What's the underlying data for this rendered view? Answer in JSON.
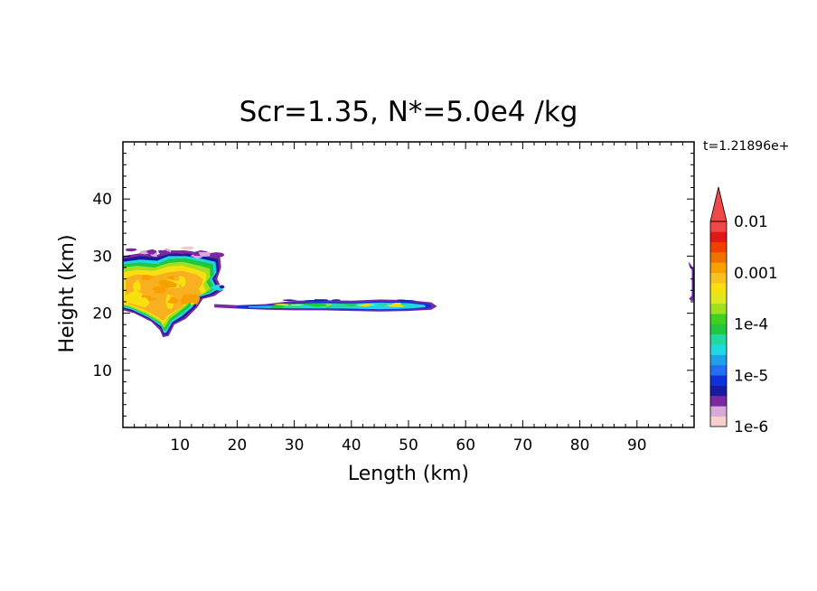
{
  "chart_data": {
    "type": "heatmap",
    "title": "Scr=1.35, N*=5.0e4 /kg",
    "time_label": "t=1.21896e+",
    "xlabel": "Length  (km)",
    "ylabel": "Height  (km)",
    "xlim": [
      0,
      100
    ],
    "ylim": [
      0,
      50
    ],
    "x_ticks": [
      "10",
      "20",
      "30",
      "40",
      "50",
      "60",
      "70",
      "80",
      "90"
    ],
    "y_ticks": [
      "10",
      "20",
      "30",
      "40"
    ],
    "x_tick_values": [
      10,
      20,
      30,
      40,
      50,
      60,
      70,
      80,
      90
    ],
    "y_tick_values": [
      10,
      20,
      30,
      40
    ],
    "colorbar": {
      "labels": [
        "0.01",
        "0.001",
        "1e-4",
        "1e-5",
        "1e-6"
      ],
      "label_values": [
        0.01,
        0.001,
        0.0001,
        1e-05,
        1e-06
      ],
      "colors": [
        "#f7d0cc",
        "#d8a8d8",
        "#7a2aa0",
        "#1a1aa0",
        "#1030d8",
        "#2070f0",
        "#20a0e8",
        "#20d8e0",
        "#20d8a0",
        "#20c840",
        "#40d020",
        "#a0e020",
        "#e0e820",
        "#f8e010",
        "#f8c020",
        "#f8a000",
        "#f07000",
        "#f04000",
        "#e01818",
        "#f04848"
      ],
      "extend": "max"
    },
    "features": [
      {
        "name": "anvil-main",
        "x_range": [
          0,
          17
        ],
        "y_range": [
          16,
          31
        ]
      },
      {
        "name": "thin-layer",
        "x_range": [
          17,
          55
        ],
        "y_range": [
          20.5,
          22.5
        ]
      },
      {
        "name": "edge-fragment",
        "x_range": [
          99,
          100
        ],
        "y_range": [
          22,
          29
        ]
      }
    ]
  }
}
